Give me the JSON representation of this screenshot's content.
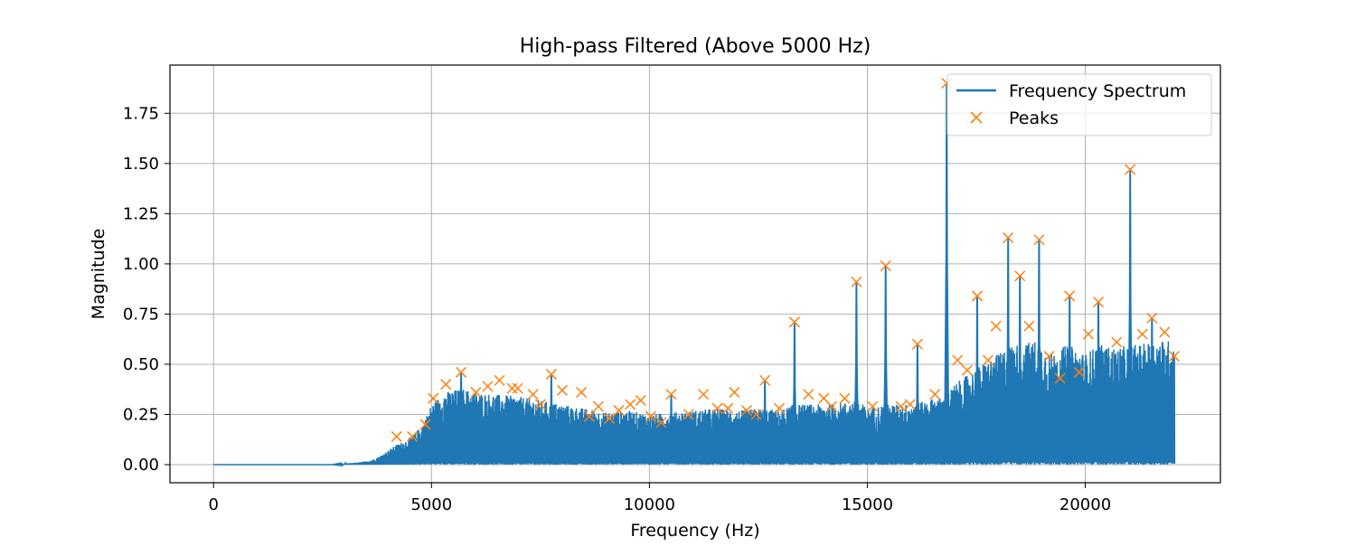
{
  "chart_data": {
    "type": "line",
    "title": "High-pass Filtered (Above 5000 Hz)",
    "xlabel": "Frequency (Hz)",
    "ylabel": "Magnitude",
    "xlim": [
      -1000,
      23100
    ],
    "ylim": [
      -0.09,
      1.99
    ],
    "x_ticks": [
      0,
      5000,
      10000,
      15000,
      20000
    ],
    "x_tick_labels": [
      "0",
      "5000",
      "10000",
      "15000",
      "20000"
    ],
    "y_ticks": [
      0.0,
      0.25,
      0.5,
      0.75,
      1.0,
      1.25,
      1.5,
      1.75
    ],
    "y_tick_labels": [
      "0.00",
      "0.25",
      "0.50",
      "0.75",
      "1.00",
      "1.25",
      "1.50",
      "1.75"
    ],
    "grid": true,
    "legend_position": "upper right",
    "legend": [
      {
        "label": "Frequency Spectrum",
        "kind": "line",
        "color": "#1f77b4"
      },
      {
        "label": "Peaks",
        "kind": "marker-x",
        "color": "#ff7f0e"
      }
    ],
    "series": [
      {
        "name": "Frequency Spectrum",
        "color": "#1f77b4",
        "envelope_x": [
          0,
          2700,
          3000,
          3300,
          3600,
          3800,
          4000,
          4200,
          4400,
          4600,
          4800,
          5000,
          5300,
          5700,
          6000,
          6500,
          7000,
          7500,
          8000,
          8500,
          9000,
          9500,
          10000,
          10500,
          11000,
          11500,
          12000,
          12500,
          13000,
          13300,
          13600,
          14000,
          14500,
          14800,
          15000,
          15400,
          15800,
          16200,
          16500,
          16800,
          17000,
          17500,
          18000,
          18300,
          18500,
          18900,
          19200,
          19600,
          20000,
          20300,
          20700,
          21050,
          21300,
          21600,
          21800,
          22050
        ],
        "envelope_y": [
          0.0,
          0.0,
          0.005,
          0.01,
          0.02,
          0.04,
          0.07,
          0.1,
          0.12,
          0.15,
          0.2,
          0.3,
          0.36,
          0.38,
          0.36,
          0.35,
          0.34,
          0.32,
          0.3,
          0.28,
          0.26,
          0.27,
          0.25,
          0.26,
          0.27,
          0.28,
          0.27,
          0.28,
          0.27,
          0.3,
          0.3,
          0.3,
          0.31,
          0.32,
          0.28,
          0.3,
          0.3,
          0.31,
          0.33,
          0.34,
          0.4,
          0.48,
          0.55,
          0.6,
          0.6,
          0.62,
          0.55,
          0.6,
          0.55,
          0.6,
          0.58,
          0.6,
          0.6,
          0.62,
          0.62,
          0.62
        ],
        "spikes": [
          {
            "x": 5680,
            "y": 0.46
          },
          {
            "x": 7750,
            "y": 0.45
          },
          {
            "x": 10500,
            "y": 0.35
          },
          {
            "x": 12650,
            "y": 0.42
          },
          {
            "x": 13330,
            "y": 0.71
          },
          {
            "x": 14750,
            "y": 0.91
          },
          {
            "x": 15420,
            "y": 0.99
          },
          {
            "x": 16150,
            "y": 0.6
          },
          {
            "x": 16820,
            "y": 1.9
          },
          {
            "x": 17520,
            "y": 0.84
          },
          {
            "x": 18230,
            "y": 1.13
          },
          {
            "x": 18500,
            "y": 0.94
          },
          {
            "x": 18940,
            "y": 1.12
          },
          {
            "x": 19640,
            "y": 0.84
          },
          {
            "x": 20300,
            "y": 0.81
          },
          {
            "x": 21030,
            "y": 1.47
          },
          {
            "x": 21530,
            "y": 0.73
          }
        ]
      },
      {
        "name": "Peaks",
        "color": "#ff7f0e",
        "x": [
          4200,
          4560,
          4860,
          5040,
          5330,
          5680,
          6020,
          6290,
          6560,
          6850,
          6980,
          7330,
          7500,
          7750,
          8000,
          8440,
          8620,
          8830,
          9080,
          9300,
          9560,
          9800,
          10030,
          10270,
          10500,
          10900,
          11240,
          11560,
          11800,
          11950,
          12230,
          12450,
          12650,
          12980,
          13330,
          13650,
          14000,
          14180,
          14480,
          14750,
          15120,
          15420,
          15770,
          15980,
          16150,
          16550,
          16820,
          17070,
          17290,
          17520,
          17770,
          17950,
          18230,
          18500,
          18710,
          18940,
          19170,
          19420,
          19640,
          19860,
          20070,
          20300,
          20720,
          21030,
          21310,
          21530,
          21820,
          22040
        ],
        "y": [
          0.14,
          0.14,
          0.2,
          0.33,
          0.4,
          0.46,
          0.36,
          0.39,
          0.42,
          0.38,
          0.38,
          0.35,
          0.3,
          0.45,
          0.37,
          0.36,
          0.24,
          0.29,
          0.23,
          0.27,
          0.3,
          0.32,
          0.24,
          0.21,
          0.35,
          0.25,
          0.35,
          0.28,
          0.28,
          0.36,
          0.27,
          0.25,
          0.42,
          0.28,
          0.71,
          0.35,
          0.33,
          0.29,
          0.33,
          0.91,
          0.29,
          0.99,
          0.29,
          0.3,
          0.6,
          0.35,
          1.9,
          0.52,
          0.47,
          0.84,
          0.52,
          0.69,
          1.13,
          0.94,
          0.69,
          1.12,
          0.54,
          0.43,
          0.84,
          0.46,
          0.65,
          0.81,
          0.61,
          1.47,
          0.65,
          0.73,
          0.66,
          0.54
        ]
      }
    ]
  }
}
